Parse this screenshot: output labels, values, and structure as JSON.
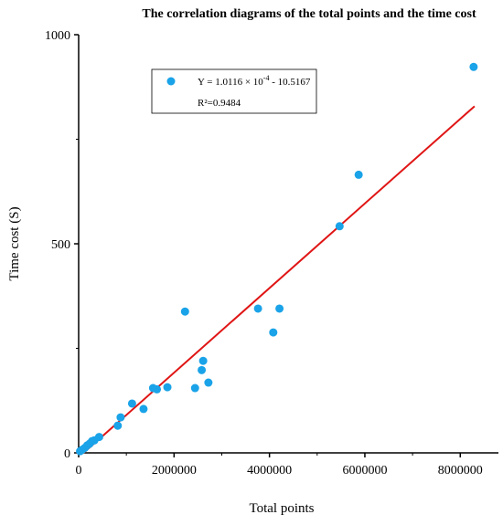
{
  "chart_data": {
    "type": "scatter",
    "title": "The correlation diagrams of the total points and the time cost",
    "xlabel": "Total points",
    "ylabel": "Time cost (S)",
    "xlim": [
      0,
      8800000
    ],
    "ylim": [
      0,
      1000
    ],
    "xticks": [
      0,
      2000000,
      4000000,
      6000000,
      8000000
    ],
    "xtick_labels": [
      "0",
      "2000000",
      "4000000",
      "6000000",
      "8000000"
    ],
    "yticks": [
      0,
      500,
      1000
    ],
    "ytick_labels": [
      "0",
      "500",
      "1000"
    ],
    "points": [
      {
        "x": 30000,
        "y": 4
      },
      {
        "x": 80000,
        "y": 8
      },
      {
        "x": 130000,
        "y": 12
      },
      {
        "x": 180000,
        "y": 18
      },
      {
        "x": 230000,
        "y": 22
      },
      {
        "x": 280000,
        "y": 28
      },
      {
        "x": 330000,
        "y": 30
      },
      {
        "x": 430000,
        "y": 38
      },
      {
        "x": 820000,
        "y": 65
      },
      {
        "x": 880000,
        "y": 85
      },
      {
        "x": 1120000,
        "y": 118
      },
      {
        "x": 1360000,
        "y": 105
      },
      {
        "x": 1560000,
        "y": 155
      },
      {
        "x": 1640000,
        "y": 152
      },
      {
        "x": 1860000,
        "y": 157
      },
      {
        "x": 2230000,
        "y": 338
      },
      {
        "x": 2440000,
        "y": 155
      },
      {
        "x": 2580000,
        "y": 198
      },
      {
        "x": 2610000,
        "y": 220
      },
      {
        "x": 2720000,
        "y": 168
      },
      {
        "x": 3760000,
        "y": 345
      },
      {
        "x": 4080000,
        "y": 288
      },
      {
        "x": 4210000,
        "y": 345
      },
      {
        "x": 5470000,
        "y": 542
      },
      {
        "x": 5870000,
        "y": 665
      },
      {
        "x": 8280000,
        "y": 923
      }
    ],
    "fit_line": {
      "x1": 0,
      "y1": -10.5167,
      "x2": 8300000,
      "y2": 829
    },
    "legend": {
      "placement": "top-left inside plot",
      "equation": "Y = 1.0116 × 10^-4 - 10.5167",
      "r_squared": "R²=0.9484"
    },
    "colors": {
      "points": "#1aa3e8",
      "fit_line": "#e01515",
      "axis": "#000000"
    },
    "grid": false
  }
}
